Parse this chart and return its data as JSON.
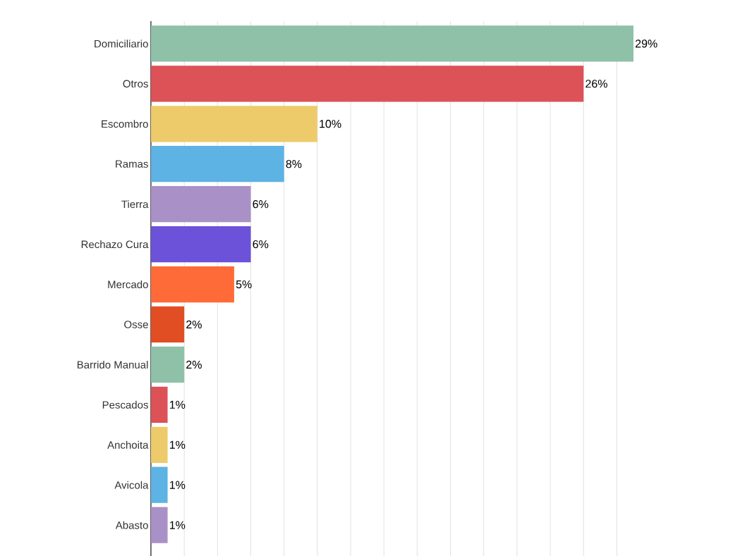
{
  "chart_data": {
    "type": "bar",
    "orientation": "horizontal",
    "categories": [
      "Domiciliario",
      "Otros",
      "Escombro",
      "Ramas",
      "Tierra",
      "Rechazo Cura",
      "Mercado",
      "Osse",
      "Barrido Manual",
      "Pescados",
      "Anchoita",
      "Avicola",
      "Abasto"
    ],
    "values": [
      29,
      26,
      10,
      8,
      6,
      6,
      5,
      2,
      2,
      1,
      1,
      1,
      1
    ],
    "value_labels": [
      "29%",
      "26%",
      "10%",
      "8%",
      "6%",
      "6%",
      "5%",
      "2%",
      "2%",
      "1%",
      "1%",
      "1%",
      "1%"
    ],
    "colors": [
      "#8fc1a9",
      "#dc5257",
      "#eecb6a",
      "#5db3e3",
      "#a991c8",
      "#6c52d9",
      "#ff6b38",
      "#e24e24",
      "#8fc1a9",
      "#dc5257",
      "#eecb6a",
      "#5db3e3",
      "#a991c8"
    ],
    "grid": "x",
    "tick_labels": "y"
  }
}
